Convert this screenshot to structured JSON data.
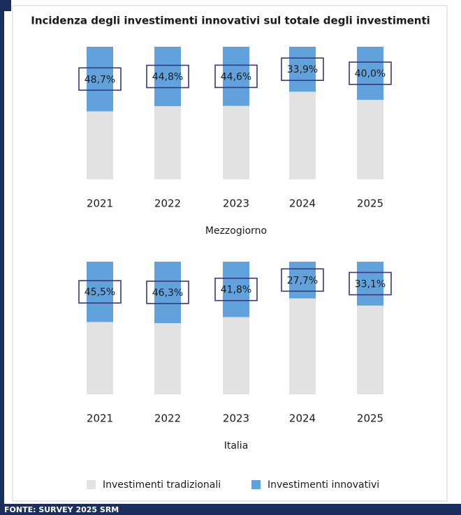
{
  "title": "Incidenza degli investimenti innovativi sul totale degli investimenti",
  "source": "FONTE: SURVEY 2025 SRM",
  "chart_data": [
    {
      "type": "stacked_bar",
      "xlabel": "Mezzogiorno",
      "categories": [
        "2021",
        "2022",
        "2023",
        "2024",
        "2025"
      ],
      "ylim": [
        0,
        100
      ],
      "series": [
        {
          "name": "Investimenti tradizionali",
          "color": "#e2e2e2",
          "values": [
            51.3,
            55.2,
            55.4,
            66.1,
            60.0
          ]
        },
        {
          "name": "Investimenti innovativi",
          "color": "#62a2dc",
          "values": [
            48.7,
            44.8,
            44.6,
            33.9,
            40.0
          ],
          "value_labels": [
            "48,7%",
            "44,8%",
            "44,6%",
            "33,9%",
            "40,0%"
          ]
        }
      ]
    },
    {
      "type": "stacked_bar",
      "xlabel": "Italia",
      "categories": [
        "2021",
        "2022",
        "2023",
        "2024",
        "2025"
      ],
      "ylim": [
        0,
        100
      ],
      "series": [
        {
          "name": "Investimenti tradizionali",
          "color": "#e2e2e2",
          "values": [
            54.5,
            53.7,
            58.2,
            72.3,
            66.9
          ]
        },
        {
          "name": "Investimenti innovativi",
          "color": "#62a2dc",
          "values": [
            45.5,
            46.3,
            41.8,
            27.7,
            33.1
          ],
          "value_labels": [
            "45,5%",
            "46,3%",
            "41,8%",
            "27,7%",
            "33,1%"
          ]
        }
      ]
    }
  ]
}
